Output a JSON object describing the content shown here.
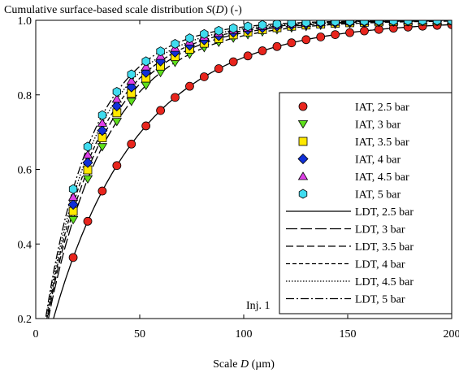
{
  "chart_data": {
    "type": "scatter",
    "title_prefix": "Cumulative surface-based scale distribution ",
    "title_var": "S",
    "title_arg": "D",
    "title_suffix": " (-)",
    "xlabel_prefix": "Scale ",
    "xlabel_var": "D",
    "xlabel_unit": " (µm)",
    "xlim": [
      0,
      200
    ],
    "ylim": [
      0.2,
      1.0
    ],
    "xticks": [
      0,
      50,
      100,
      150,
      200
    ],
    "yticks": [
      0.2,
      0.4,
      0.6,
      0.8,
      1.0
    ],
    "ytick_labels": [
      "0.2",
      "0.4",
      "0.6",
      "0.8",
      "1.0"
    ],
    "annotation": "Inj. 1",
    "legend_position": "bottom-right",
    "series": [
      {
        "name": "IAT, 2.5 bar",
        "kind": "marker",
        "marker": "circle",
        "color": "#e8251d",
        "x0": 18,
        "lambda": 41.5,
        "k": 0.95
      },
      {
        "name": "IAT, 3 bar",
        "kind": "marker",
        "marker": "tri-down",
        "color": "#5ee01c",
        "x0": 18,
        "lambda": 29.5,
        "k": 0.95
      },
      {
        "name": "IAT, 3.5 bar",
        "kind": "marker",
        "marker": "square",
        "color": "#ffe800",
        "x0": 18,
        "lambda": 27.5,
        "k": 0.95
      },
      {
        "name": "IAT, 4 bar",
        "kind": "marker",
        "marker": "diamond",
        "color": "#1030d8",
        "x0": 18,
        "lambda": 26.0,
        "k": 0.95
      },
      {
        "name": "IAT, 4.5 bar",
        "kind": "marker",
        "marker": "triangle",
        "color": "#e040e8",
        "x0": 18,
        "lambda": 24.5,
        "k": 0.95
      },
      {
        "name": "IAT, 5 bar",
        "kind": "marker",
        "marker": "hexagon",
        "color": "#40dcef",
        "x0": 18,
        "lambda": 23.0,
        "k": 0.95
      },
      {
        "name": "LDT, 2.5 bar",
        "kind": "line",
        "dash": "",
        "lambda": 41.5,
        "k": 0.95
      },
      {
        "name": "LDT, 3 bar",
        "kind": "line",
        "dash": "14,4",
        "lambda": 29.5,
        "k": 0.95
      },
      {
        "name": "LDT, 3.5 bar",
        "kind": "line",
        "dash": "9,4",
        "lambda": 27.5,
        "k": 0.95
      },
      {
        "name": "LDT, 4 bar",
        "kind": "line",
        "dash": "5,3",
        "lambda": 26.0,
        "k": 0.95
      },
      {
        "name": "LDT, 4.5 bar",
        "kind": "line",
        "dash": "1.5,2",
        "lambda": 24.5,
        "k": 0.95
      },
      {
        "name": "LDT, 5 bar",
        "kind": "line",
        "dash": "10,3,2,3",
        "lambda": 23.0,
        "k": 0.95
      }
    ]
  }
}
